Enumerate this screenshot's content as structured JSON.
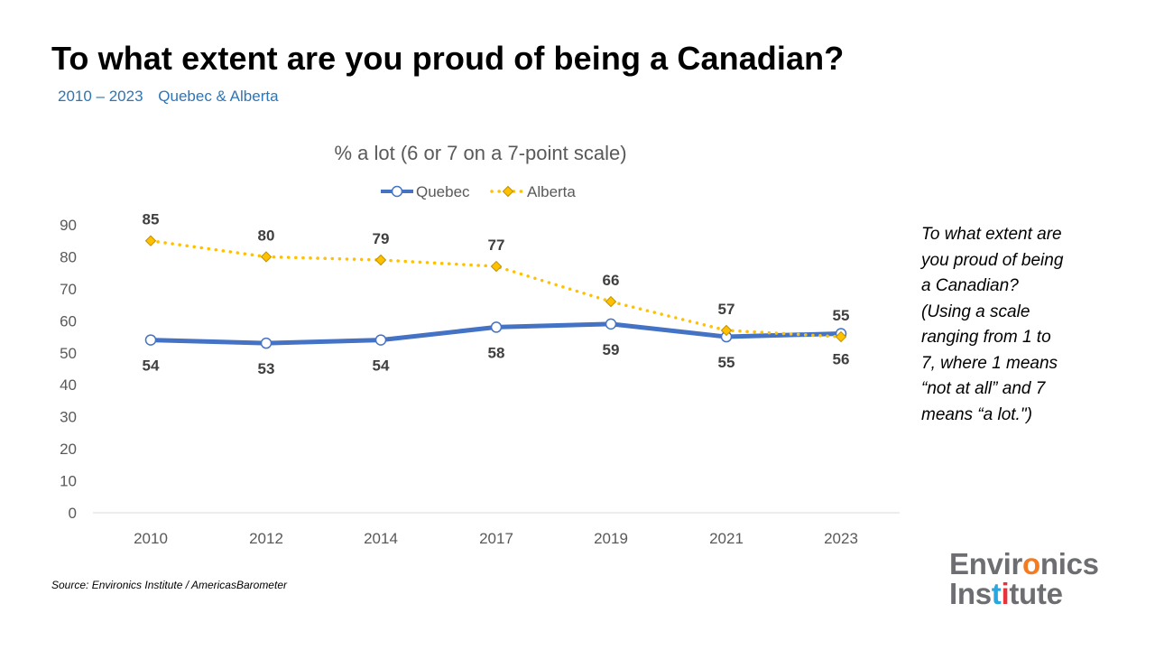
{
  "header": {
    "title": "To what extent are you proud of being a Canadian?",
    "subtitle_years": "2010 – 2023",
    "subtitle_regions": "Quebec & Alberta"
  },
  "side_note": {
    "lines": [
      "To what extent are",
      "you proud of being",
      "a Canadian?",
      "(Using a scale",
      "ranging from 1 to",
      "7, where 1 means",
      "“not at all” and 7",
      "means “a lot.\")"
    ]
  },
  "source": "Source: Environics Institute / AmericasBarometer",
  "logo": {
    "line1_a": "Envir",
    "line1_b": "o",
    "line1_c": "nics",
    "line2_a": "Ins",
    "line2_b": "t",
    "line2_c": "",
    "line2_d": "tute"
  },
  "chart_data": {
    "type": "line",
    "title": "% a lot (6 or 7 on a 7-point scale)",
    "categories": [
      "2010",
      "2012",
      "2014",
      "2017",
      "2019",
      "2021",
      "2023"
    ],
    "series": [
      {
        "name": "Quebec",
        "values": [
          54,
          53,
          54,
          58,
          59,
          55,
          56
        ],
        "color": "#4472C4",
        "style": "solid",
        "marker": "circle",
        "label_position": "below"
      },
      {
        "name": "Alberta",
        "values": [
          85,
          80,
          79,
          77,
          66,
          57,
          55
        ],
        "color": "#FFC000",
        "style": "dotted",
        "marker": "diamond",
        "label_position": "above"
      }
    ],
    "data_labels": {
      "Quebec": [
        "54",
        "53",
        "54",
        "58",
        "59",
        "55",
        "56"
      ],
      "Alberta": [
        "85",
        "80",
        "79",
        "77",
        "66",
        "57",
        "55"
      ]
    },
    "ylim": [
      0,
      90
    ],
    "yticks": [
      0,
      10,
      20,
      30,
      40,
      50,
      60,
      70,
      80,
      90
    ],
    "legend": "top",
    "grid": false
  },
  "colors": {
    "title": "#000000",
    "subtitle": "#2E75B6",
    "axis_text": "#595959",
    "data_label": "#404040",
    "logo_gray": "#6D6E71",
    "logo_orange": "#F47B20",
    "logo_blue": "#2AA7DF",
    "logo_red": "#E8333A"
  }
}
